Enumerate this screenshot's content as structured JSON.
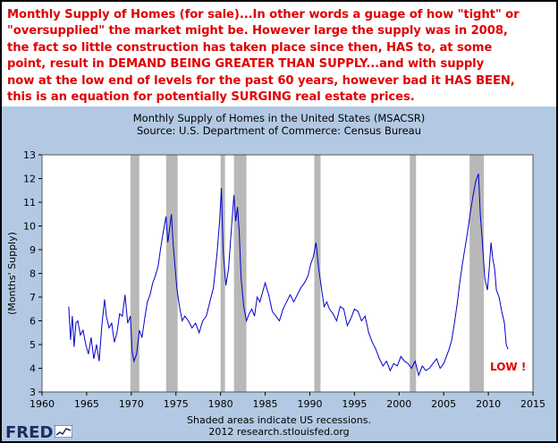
{
  "headline": {
    "lines": [
      "Monthly Supply of Homes (for sale)...In other words a guage of how \"tight\" or",
      "\"oversupplied\" the market might be. However large the supply was in 2008,",
      "the fact so little construction has taken place since then, HAS to, at some",
      "point, result in DEMAND BEING GREATER THAN SUPPLY...and with supply",
      "now at the low end of levels for the past 60 years, however bad it HAS BEEN,",
      "this is an equation for potentially SURGING real estate prices."
    ]
  },
  "chart_data": {
    "type": "line",
    "title": "Monthly Supply of Homes in the United States (MSACSR)",
    "subtitle": "Source: U.S. Department of Commerce: Census Bureau",
    "ylabel": "(Months' Supply)",
    "xlabel": "",
    "xlim": [
      1960,
      2015
    ],
    "ylim": [
      3,
      13
    ],
    "x_ticks": [
      1960,
      1965,
      1970,
      1975,
      1980,
      1985,
      1990,
      1995,
      2000,
      2005,
      2010,
      2015
    ],
    "y_ticks": [
      3,
      4,
      5,
      6,
      7,
      8,
      9,
      10,
      11,
      12,
      13
    ],
    "recessions": [
      [
        1969.9,
        1970.9
      ],
      [
        1973.9,
        1975.2
      ],
      [
        1980.0,
        1980.5
      ],
      [
        1981.5,
        1982.9
      ],
      [
        1990.5,
        1991.2
      ],
      [
        2001.2,
        2001.9
      ],
      [
        2007.9,
        2009.5
      ]
    ],
    "series": [
      {
        "color": "#0000cc",
        "x": [
          1963.0,
          1963.2,
          1963.4,
          1963.6,
          1963.8,
          1964.0,
          1964.3,
          1964.6,
          1964.9,
          1965.2,
          1965.5,
          1965.8,
          1966.1,
          1966.4,
          1966.7,
          1967.0,
          1967.2,
          1967.5,
          1967.8,
          1968.1,
          1968.4,
          1968.7,
          1969.0,
          1969.3,
          1969.6,
          1969.9,
          1970.1,
          1970.3,
          1970.6,
          1970.9,
          1971.2,
          1971.5,
          1971.8,
          1972.1,
          1972.4,
          1972.7,
          1973.0,
          1973.3,
          1973.6,
          1973.9,
          1974.1,
          1974.3,
          1974.5,
          1974.7,
          1974.9,
          1975.1,
          1975.4,
          1975.7,
          1976.0,
          1976.4,
          1976.8,
          1977.2,
          1977.6,
          1978.0,
          1978.4,
          1978.8,
          1979.2,
          1979.6,
          1979.9,
          1980.1,
          1980.3,
          1980.6,
          1980.9,
          1981.2,
          1981.5,
          1981.7,
          1981.9,
          1982.1,
          1982.3,
          1982.6,
          1982.9,
          1983.2,
          1983.5,
          1983.8,
          1984.1,
          1984.4,
          1984.7,
          1985.0,
          1985.4,
          1985.8,
          1986.2,
          1986.6,
          1987.0,
          1987.4,
          1987.8,
          1988.2,
          1988.6,
          1989.0,
          1989.4,
          1989.8,
          1990.1,
          1990.4,
          1990.7,
          1991.0,
          1991.3,
          1991.6,
          1991.9,
          1992.2,
          1992.6,
          1993.0,
          1993.4,
          1993.8,
          1994.2,
          1994.6,
          1995.0,
          1995.4,
          1995.8,
          1996.2,
          1996.6,
          1997.0,
          1997.4,
          1997.8,
          1998.2,
          1998.6,
          1999.0,
          1999.4,
          1999.8,
          2000.2,
          2000.6,
          2001.0,
          2001.4,
          2001.8,
          2002.2,
          2002.6,
          2003.0,
          2003.4,
          2003.8,
          2004.2,
          2004.6,
          2005.0,
          2005.3,
          2005.6,
          2005.9,
          2006.2,
          2006.5,
          2006.8,
          2007.1,
          2007.4,
          2007.7,
          2008.0,
          2008.3,
          2008.6,
          2008.9,
          2009.1,
          2009.3,
          2009.6,
          2009.9,
          2010.1,
          2010.3,
          2010.5,
          2010.7,
          2010.9,
          2011.2,
          2011.5,
          2011.8,
          2012.0,
          2012.2
        ],
        "values": [
          6.6,
          5.2,
          6.2,
          4.9,
          5.9,
          6.0,
          5.4,
          5.6,
          5.0,
          4.6,
          5.3,
          4.4,
          5.0,
          4.3,
          5.8,
          6.9,
          6.2,
          5.7,
          5.9,
          5.1,
          5.5,
          6.3,
          6.2,
          7.1,
          5.9,
          6.2,
          4.7,
          4.3,
          4.6,
          5.6,
          5.3,
          6.1,
          6.8,
          7.1,
          7.6,
          7.9,
          8.3,
          9.1,
          9.8,
          10.4,
          9.3,
          9.9,
          10.5,
          9.2,
          8.3,
          7.4,
          6.6,
          6.0,
          6.2,
          6.0,
          5.7,
          5.9,
          5.5,
          6.0,
          6.2,
          6.8,
          7.4,
          8.8,
          10.2,
          11.6,
          8.9,
          7.5,
          8.2,
          9.8,
          11.3,
          10.2,
          10.8,
          9.7,
          7.8,
          6.6,
          6.0,
          6.3,
          6.5,
          6.2,
          7.0,
          6.8,
          7.2,
          7.6,
          7.1,
          6.4,
          6.2,
          6.0,
          6.5,
          6.8,
          7.1,
          6.8,
          7.1,
          7.4,
          7.6,
          7.9,
          8.4,
          8.7,
          9.3,
          8.2,
          7.4,
          6.6,
          6.8,
          6.5,
          6.3,
          6.0,
          6.6,
          6.5,
          5.8,
          6.1,
          6.5,
          6.4,
          6.0,
          6.2,
          5.5,
          5.1,
          4.8,
          4.4,
          4.1,
          4.3,
          3.9,
          4.2,
          4.1,
          4.5,
          4.3,
          4.2,
          4.0,
          4.3,
          3.7,
          4.1,
          3.9,
          4.0,
          4.2,
          4.4,
          4.0,
          4.2,
          4.5,
          4.8,
          5.2,
          5.9,
          6.7,
          7.6,
          8.4,
          9.1,
          9.8,
          10.6,
          11.3,
          11.9,
          12.2,
          10.5,
          9.5,
          7.8,
          7.3,
          8.2,
          9.3,
          8.6,
          8.2,
          7.3,
          7.0,
          6.4,
          5.9,
          5.0,
          4.8
        ]
      }
    ],
    "annotations": [
      "LOW !"
    ]
  },
  "footer": {
    "note": "Shaded areas indicate US recessions.",
    "credit": "2012 research.stlouisfed.org"
  },
  "logo": {
    "text": "FRED"
  }
}
